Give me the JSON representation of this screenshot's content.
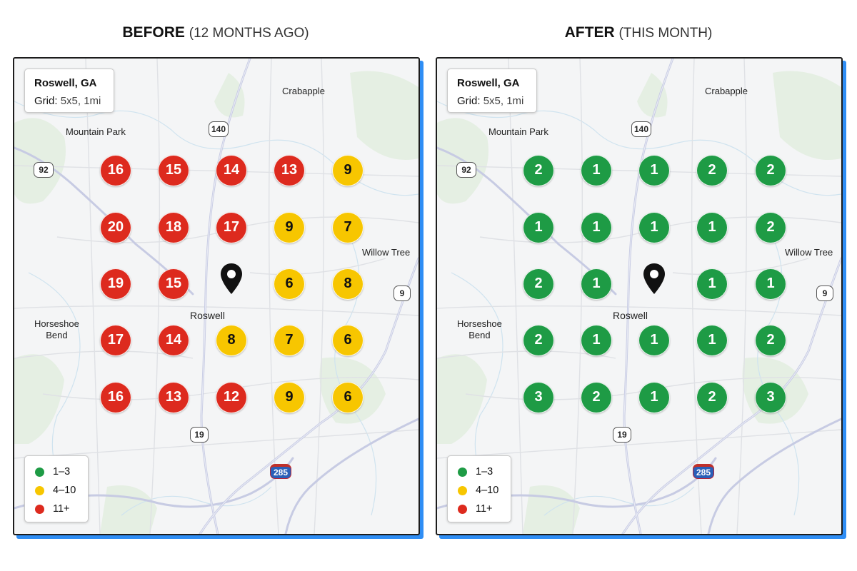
{
  "colors": {
    "green": "#1e9b45",
    "yellow": "#f7c600",
    "red": "#dd2a1e",
    "accent_shadow": "#2f8ef5"
  },
  "panels": [
    {
      "title_bold": "BEFORE",
      "title_sub": "(12 MONTHS AGO)",
      "info": {
        "location": "Roswell, GA",
        "grid_label": "Grid:",
        "grid_value": "5x5, 1mi"
      },
      "ranks": [
        [
          16,
          15,
          14,
          13,
          9
        ],
        [
          20,
          18,
          17,
          9,
          7
        ],
        [
          19,
          15,
          null,
          6,
          8
        ],
        [
          17,
          14,
          8,
          7,
          6
        ],
        [
          16,
          13,
          12,
          9,
          6
        ]
      ]
    },
    {
      "title_bold": "AFTER",
      "title_sub": "(THIS MONTH)",
      "info": {
        "location": "Roswell, GA",
        "grid_label": "Grid:",
        "grid_value": "5x5, 1mi"
      },
      "ranks": [
        [
          2,
          1,
          1,
          2,
          2
        ],
        [
          1,
          1,
          1,
          1,
          2
        ],
        [
          2,
          1,
          null,
          1,
          1
        ],
        [
          2,
          1,
          1,
          1,
          2
        ],
        [
          3,
          2,
          1,
          2,
          3
        ]
      ]
    }
  ],
  "map_labels": {
    "crabapple": "Crabapple",
    "mountain_park": "Mountain Park",
    "willow_tree": "Willow Tree",
    "horseshoe_bend": "Horseshoe\nBend",
    "roswell": "Roswell"
  },
  "shields": {
    "r140": "140",
    "r92": "92",
    "r9": "9",
    "r19": "19",
    "i285": "285"
  },
  "legend": [
    {
      "label": "1–3",
      "color": "#1e9b45"
    },
    {
      "label": "4–10",
      "color": "#f7c600"
    },
    {
      "label": "11+",
      "color": "#dd2a1e"
    }
  ],
  "icons": {
    "pin": "map-pin-icon"
  }
}
